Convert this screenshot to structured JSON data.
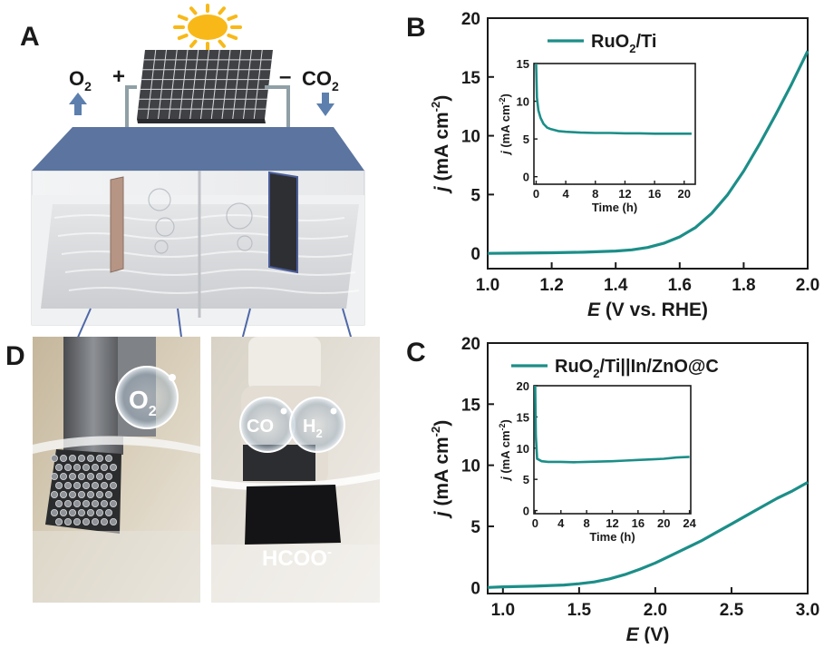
{
  "panels": {
    "a": "A",
    "b": "B",
    "c": "C",
    "d": "D"
  },
  "schematic": {
    "anode_gas": "O",
    "anode_gas_sub": "2",
    "plus": "+",
    "minus": "–",
    "cathode_gas": "CO",
    "cathode_gas_sub": "2"
  },
  "photo": {
    "left_bubble": "O",
    "left_bubble_sub": "2",
    "co_bubble": "CO",
    "h2_bubble": "H",
    "h2_bubble_sub": "2",
    "product": "HCOO",
    "product_sup": "-"
  },
  "colors": {
    "teal": "#1c8e88",
    "panel_blue": "#55709a",
    "sun": "#f8b918",
    "arrow": "#5c7fae"
  },
  "chart_data": [
    {
      "id": "B",
      "type": "line",
      "legend": "RuO2/Ti",
      "legend_main": "RuO",
      "legend_sub": "2",
      "legend_tail": "/Ti",
      "xlabel_italic": "E",
      "xlabel_rest": " (V vs. RHE)",
      "ylabel_italic": "j",
      "ylabel_rest": " (mA cm",
      "ylabel_sup": "-2",
      "ylabel_close": ")",
      "xlim": [
        1.0,
        2.0
      ],
      "ylim": [
        -1.3,
        20
      ],
      "xticks": [
        "1.0",
        "1.2",
        "1.4",
        "1.6",
        "1.8",
        "2.0"
      ],
      "yticks": [
        "0",
        "5",
        "10",
        "15",
        "20"
      ],
      "x": [
        1.0,
        1.1,
        1.2,
        1.3,
        1.4,
        1.45,
        1.5,
        1.55,
        1.6,
        1.65,
        1.7,
        1.75,
        1.8,
        1.85,
        1.9,
        1.95,
        2.0
      ],
      "y": [
        0.0,
        0.02,
        0.05,
        0.1,
        0.2,
        0.3,
        0.5,
        0.85,
        1.4,
        2.2,
        3.4,
        5.0,
        7.0,
        9.3,
        11.8,
        14.4,
        17.2
      ],
      "inset": {
        "type": "line",
        "xlabel": "Time (h)",
        "ylabel_italic": "j",
        "ylabel_rest": " (mA cm",
        "ylabel_sup": "-2",
        "ylabel_close": ")",
        "xlim": [
          -0.3,
          21.5
        ],
        "ylim": [
          -1,
          15
        ],
        "xticks": [
          "0",
          "4",
          "8",
          "12",
          "16",
          "20"
        ],
        "yticks": [
          "0",
          "5",
          "10",
          "15"
        ],
        "x": [
          0,
          0.1,
          0.3,
          0.6,
          1,
          1.5,
          2,
          3,
          4,
          6,
          8,
          10,
          12,
          14,
          16,
          18,
          20,
          21
        ],
        "y": [
          15,
          10.5,
          8.8,
          7.8,
          7.0,
          6.5,
          6.3,
          6.05,
          5.95,
          5.85,
          5.8,
          5.8,
          5.75,
          5.75,
          5.7,
          5.7,
          5.7,
          5.7
        ]
      }
    },
    {
      "id": "C",
      "type": "line",
      "legend": "RuO2/Ti||In/ZnO@C",
      "legend_main": "RuO",
      "legend_sub": "2",
      "legend_tail": "/Ti||In/ZnO@C",
      "xlabel_italic": "E",
      "xlabel_rest": " (V)",
      "ylabel_italic": "j",
      "ylabel_rest": " (mA cm",
      "ylabel_sup": "-2",
      "ylabel_close": ")",
      "xlim": [
        0.9,
        3.0
      ],
      "ylim": [
        -0.5,
        20
      ],
      "xticks": [
        "1.0",
        "1.5",
        "2.0",
        "2.5",
        "3.0"
      ],
      "yticks": [
        "0",
        "5",
        "10",
        "15",
        "20"
      ],
      "x": [
        0.9,
        1.0,
        1.2,
        1.4,
        1.5,
        1.6,
        1.7,
        1.8,
        1.9,
        2.0,
        2.1,
        2.2,
        2.3,
        2.4,
        2.5,
        2.6,
        2.7,
        2.8,
        2.9,
        3.0
      ],
      "y": [
        0.0,
        0.05,
        0.1,
        0.2,
        0.3,
        0.45,
        0.7,
        1.05,
        1.5,
        2.0,
        2.6,
        3.2,
        3.8,
        4.5,
        5.2,
        5.9,
        6.6,
        7.3,
        7.9,
        8.6
      ],
      "inset": {
        "type": "line",
        "xlabel": "Time (h)",
        "ylabel_italic": "j",
        "ylabel_rest": " (mA cm",
        "ylabel_sup": "-2",
        "ylabel_close": ")",
        "xlim": [
          -0.2,
          24.2
        ],
        "ylim": [
          -0.5,
          20
        ],
        "xticks": [
          "0",
          "4",
          "8",
          "12",
          "16",
          "20",
          "24"
        ],
        "yticks": [
          "0",
          "5",
          "10",
          "15",
          "20"
        ],
        "x": [
          0,
          0.1,
          0.3,
          1,
          2,
          4,
          6,
          8,
          10,
          12,
          14,
          16,
          18,
          20,
          22,
          24
        ],
        "y": [
          20,
          12,
          8.3,
          7.9,
          7.8,
          7.8,
          7.75,
          7.8,
          7.85,
          7.9,
          8.0,
          8.1,
          8.2,
          8.3,
          8.5,
          8.6
        ]
      }
    }
  ]
}
